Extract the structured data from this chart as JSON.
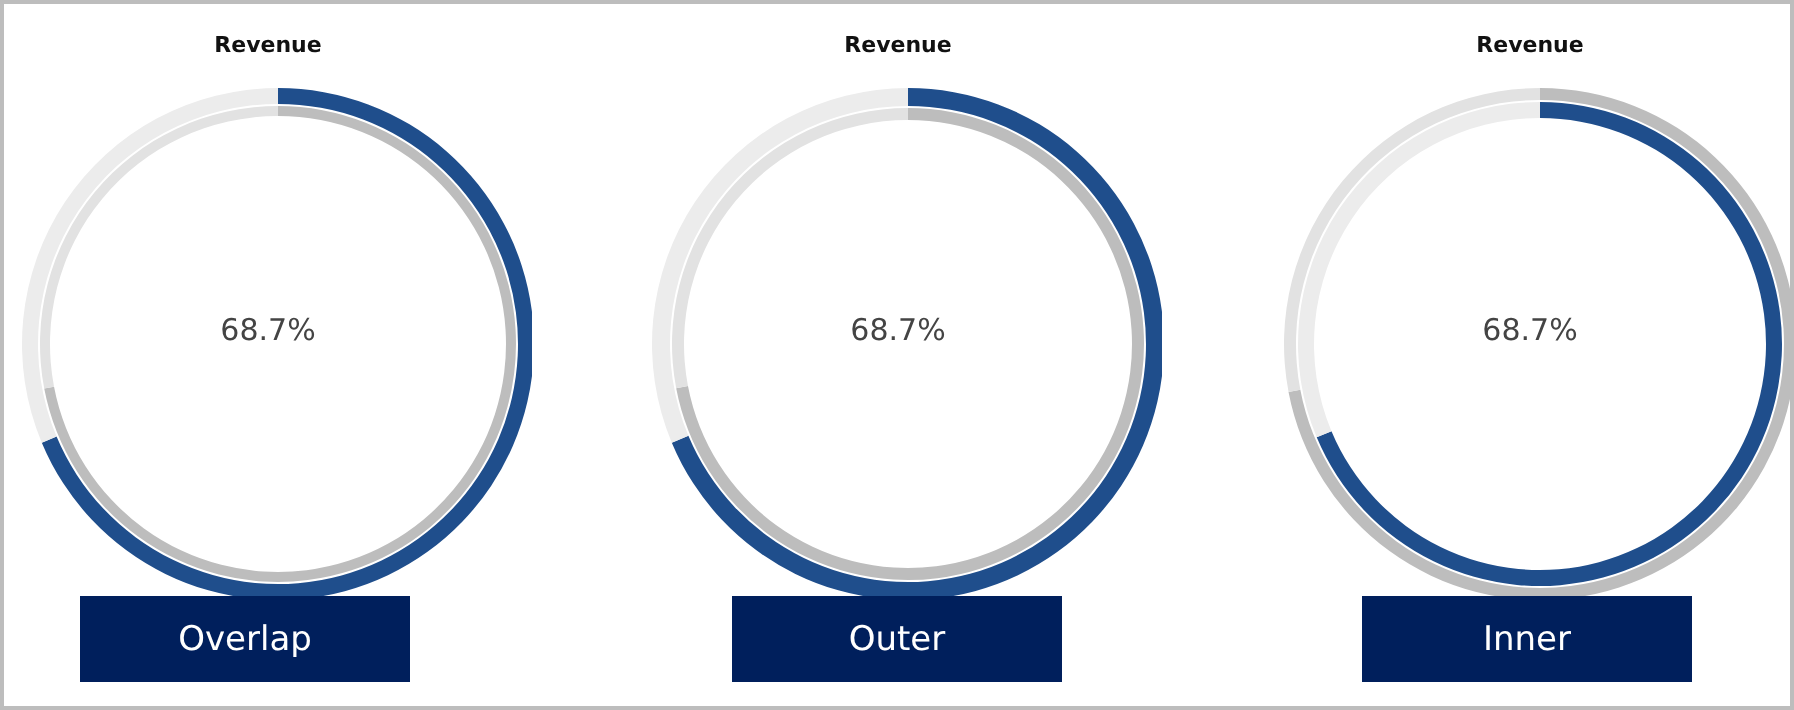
{
  "chart_data": [
    {
      "type": "donut",
      "title": "Revenue",
      "annotations": [
        "68.7%",
        "Overlap"
      ],
      "categories": [
        null,
        null
      ],
      "series": [
        {
          "values": [
            68.7,
            31.3
          ],
          "colors": [
            "#1f4e8c",
            "#ececec"
          ]
        },
        {
          "values": [
            72,
            28
          ],
          "colors": [
            "#bdbdbd",
            "#e2e2e2"
          ]
        }
      ]
    },
    {
      "type": "donut",
      "title": "Revenue",
      "annotations": [
        "68.7%",
        "Outer"
      ],
      "categories": [
        null,
        null
      ],
      "series": [
        {
          "values": [
            68.7,
            31.3
          ],
          "colors": [
            "#1f4e8c",
            "#ececec"
          ]
        },
        {
          "values": [
            72,
            28
          ],
          "colors": [
            "#bdbdbd",
            "#e2e2e2"
          ]
        }
      ]
    },
    {
      "type": "donut",
      "title": "Revenue",
      "annotations": [
        "68.7%",
        "Inner"
      ],
      "categories": [
        null,
        null
      ],
      "series": [
        {
          "values": [
            68.7,
            31.3
          ],
          "colors": [
            "#1f4e8c",
            "#ececec"
          ]
        },
        {
          "values": [
            72,
            28
          ],
          "colors": [
            "#bdbdbd",
            "#e2e2e2"
          ]
        }
      ]
    }
  ]
}
